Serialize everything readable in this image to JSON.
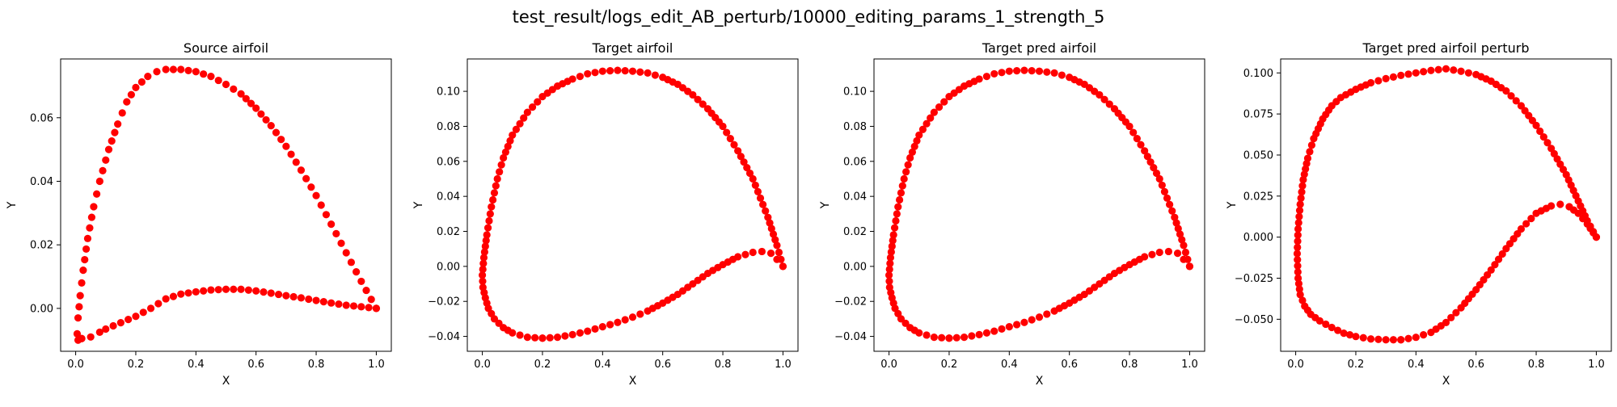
{
  "figure": {
    "suptitle": "test_result/logs_edit_AB_perturb/10000_editing_params_1_strength_5"
  },
  "style": {
    "marker_color": "#ff0000",
    "axes_color": "#000000",
    "background": "#ffffff"
  },
  "chart_data": [
    {
      "type": "scatter",
      "title": "Source airfoil",
      "xlabel": "X",
      "ylabel": "Y",
      "xlim": [
        -0.05,
        1.05
      ],
      "ylim": [
        -0.0135,
        0.0785
      ],
      "xticks": [
        0.0,
        0.2,
        0.4,
        0.6,
        0.8,
        1.0
      ],
      "xtick_labels": [
        "0.0",
        "0.2",
        "0.4",
        "0.6",
        "0.8",
        "1.0"
      ],
      "yticks": [
        0.0,
        0.02,
        0.04,
        0.06
      ],
      "ytick_labels": [
        "0.00",
        "0.02",
        "0.04",
        "0.06"
      ],
      "grid": false,
      "upper_surface": [
        [
          1.0,
          0.0
        ],
        [
          0.95,
          0.0085
        ],
        [
          0.9,
          0.0175
        ],
        [
          0.85,
          0.0265
        ],
        [
          0.8,
          0.0355
        ],
        [
          0.75,
          0.0435
        ],
        [
          0.7,
          0.051
        ],
        [
          0.65,
          0.0575
        ],
        [
          0.6,
          0.063
        ],
        [
          0.55,
          0.0675
        ],
        [
          0.5,
          0.0705
        ],
        [
          0.45,
          0.073
        ],
        [
          0.4,
          0.0745
        ],
        [
          0.35,
          0.0752
        ],
        [
          0.3,
          0.0752
        ],
        [
          0.27,
          0.0745
        ],
        [
          0.24,
          0.073
        ],
        [
          0.2,
          0.0695
        ],
        [
          0.17,
          0.065
        ],
        [
          0.14,
          0.058
        ],
        [
          0.11,
          0.05
        ],
        [
          0.08,
          0.04
        ],
        [
          0.06,
          0.032
        ],
        [
          0.04,
          0.022
        ],
        [
          0.025,
          0.012
        ],
        [
          0.015,
          0.004
        ],
        [
          0.008,
          -0.003
        ],
        [
          0.005,
          -0.008
        ],
        [
          0.008,
          -0.01
        ],
        [
          0.02,
          -0.0095
        ]
      ],
      "lower_surface": [
        [
          0.02,
          -0.0095
        ],
        [
          0.05,
          -0.009
        ],
        [
          0.08,
          -0.0075
        ],
        [
          0.1,
          -0.0065
        ],
        [
          0.15,
          -0.0045
        ],
        [
          0.2,
          -0.0025
        ],
        [
          0.25,
          0.0
        ],
        [
          0.3,
          0.003
        ],
        [
          0.35,
          0.0045
        ],
        [
          0.4,
          0.0052
        ],
        [
          0.45,
          0.0058
        ],
        [
          0.5,
          0.006
        ],
        [
          0.55,
          0.006
        ],
        [
          0.6,
          0.0055
        ],
        [
          0.65,
          0.0048
        ],
        [
          0.7,
          0.004
        ],
        [
          0.75,
          0.0033
        ],
        [
          0.8,
          0.0025
        ],
        [
          0.85,
          0.0017
        ],
        [
          0.9,
          0.001
        ],
        [
          0.95,
          0.0005
        ],
        [
          1.0,
          0.0
        ]
      ]
    },
    {
      "type": "scatter",
      "title": "Target airfoil",
      "xlabel": "X",
      "ylabel": "Y",
      "xlim": [
        -0.05,
        1.05
      ],
      "ylim": [
        -0.0485,
        0.1185
      ],
      "xticks": [
        0.0,
        0.2,
        0.4,
        0.6,
        0.8,
        1.0
      ],
      "xtick_labels": [
        "0.0",
        "0.2",
        "0.4",
        "0.6",
        "0.8",
        "1.0"
      ],
      "yticks": [
        -0.04,
        -0.02,
        0.0,
        0.02,
        0.04,
        0.06,
        0.08,
        0.1
      ],
      "ytick_labels": [
        "−0.04",
        "−0.02",
        "0.00",
        "0.02",
        "0.04",
        "0.06",
        "0.08",
        "0.10"
      ],
      "grid": false,
      "upper_surface": [
        [
          1.0,
          0.0
        ],
        [
          0.98,
          0.012
        ],
        [
          0.95,
          0.028
        ],
        [
          0.9,
          0.05
        ],
        [
          0.85,
          0.066
        ],
        [
          0.8,
          0.08
        ],
        [
          0.75,
          0.09
        ],
        [
          0.7,
          0.098
        ],
        [
          0.65,
          0.104
        ],
        [
          0.6,
          0.108
        ],
        [
          0.55,
          0.1105
        ],
        [
          0.5,
          0.1115
        ],
        [
          0.45,
          0.112
        ],
        [
          0.4,
          0.1115
        ],
        [
          0.35,
          0.11
        ],
        [
          0.3,
          0.107
        ],
        [
          0.25,
          0.103
        ],
        [
          0.2,
          0.097
        ],
        [
          0.15,
          0.088
        ],
        [
          0.1,
          0.075
        ],
        [
          0.07,
          0.062
        ],
        [
          0.05,
          0.05
        ],
        [
          0.03,
          0.034
        ],
        [
          0.015,
          0.018
        ],
        [
          0.005,
          0.005
        ],
        [
          0.0,
          -0.005
        ],
        [
          0.002,
          -0.012
        ],
        [
          0.01,
          -0.018
        ],
        [
          0.02,
          -0.024
        ],
        [
          0.04,
          -0.03
        ],
        [
          0.07,
          -0.035
        ],
        [
          0.1,
          -0.038
        ],
        [
          0.15,
          -0.0405
        ],
        [
          0.2,
          -0.041
        ]
      ],
      "lower_surface": [
        [
          0.2,
          -0.041
        ],
        [
          0.25,
          -0.0405
        ],
        [
          0.3,
          -0.039
        ],
        [
          0.35,
          -0.037
        ],
        [
          0.4,
          -0.0345
        ],
        [
          0.45,
          -0.032
        ],
        [
          0.5,
          -0.029
        ],
        [
          0.55,
          -0.0255
        ],
        [
          0.6,
          -0.021
        ],
        [
          0.65,
          -0.016
        ],
        [
          0.7,
          -0.01
        ],
        [
          0.75,
          -0.004
        ],
        [
          0.8,
          0.001
        ],
        [
          0.85,
          0.0055
        ],
        [
          0.9,
          0.008
        ],
        [
          0.93,
          0.0085
        ],
        [
          0.96,
          0.0075
        ],
        [
          0.98,
          0.004
        ],
        [
          1.0,
          0.0
        ]
      ]
    },
    {
      "type": "scatter",
      "title": "Target pred airfoil",
      "xlabel": "X",
      "ylabel": "Y",
      "xlim": [
        -0.05,
        1.05
      ],
      "ylim": [
        -0.0485,
        0.1185
      ],
      "xticks": [
        0.0,
        0.2,
        0.4,
        0.6,
        0.8,
        1.0
      ],
      "xtick_labels": [
        "0.0",
        "0.2",
        "0.4",
        "0.6",
        "0.8",
        "1.0"
      ],
      "yticks": [
        -0.04,
        -0.02,
        0.0,
        0.02,
        0.04,
        0.06,
        0.08,
        0.1
      ],
      "ytick_labels": [
        "−0.04",
        "−0.02",
        "0.00",
        "0.02",
        "0.04",
        "0.06",
        "0.08",
        "0.10"
      ],
      "grid": false,
      "upper_surface": [
        [
          1.0,
          0.0
        ],
        [
          0.98,
          0.012
        ],
        [
          0.95,
          0.028
        ],
        [
          0.9,
          0.05
        ],
        [
          0.85,
          0.066
        ],
        [
          0.8,
          0.08
        ],
        [
          0.75,
          0.09
        ],
        [
          0.7,
          0.098
        ],
        [
          0.65,
          0.104
        ],
        [
          0.6,
          0.108
        ],
        [
          0.55,
          0.1105
        ],
        [
          0.5,
          0.1115
        ],
        [
          0.45,
          0.112
        ],
        [
          0.4,
          0.1115
        ],
        [
          0.35,
          0.11
        ],
        [
          0.3,
          0.107
        ],
        [
          0.25,
          0.103
        ],
        [
          0.2,
          0.097
        ],
        [
          0.15,
          0.088
        ],
        [
          0.1,
          0.075
        ],
        [
          0.07,
          0.062
        ],
        [
          0.05,
          0.05
        ],
        [
          0.03,
          0.034
        ],
        [
          0.015,
          0.018
        ],
        [
          0.005,
          0.005
        ],
        [
          0.0,
          -0.005
        ],
        [
          0.002,
          -0.012
        ],
        [
          0.01,
          -0.018
        ],
        [
          0.02,
          -0.024
        ],
        [
          0.04,
          -0.03
        ],
        [
          0.07,
          -0.035
        ],
        [
          0.1,
          -0.038
        ],
        [
          0.15,
          -0.0405
        ],
        [
          0.2,
          -0.041
        ]
      ],
      "lower_surface": [
        [
          0.2,
          -0.041
        ],
        [
          0.25,
          -0.0405
        ],
        [
          0.3,
          -0.039
        ],
        [
          0.35,
          -0.037
        ],
        [
          0.4,
          -0.0345
        ],
        [
          0.45,
          -0.032
        ],
        [
          0.5,
          -0.029
        ],
        [
          0.55,
          -0.0255
        ],
        [
          0.6,
          -0.021
        ],
        [
          0.65,
          -0.016
        ],
        [
          0.7,
          -0.01
        ],
        [
          0.75,
          -0.004
        ],
        [
          0.8,
          0.001
        ],
        [
          0.85,
          0.0055
        ],
        [
          0.9,
          0.008
        ],
        [
          0.93,
          0.0085
        ],
        [
          0.96,
          0.0075
        ],
        [
          0.98,
          0.004
        ],
        [
          1.0,
          0.0
        ]
      ]
    },
    {
      "type": "scatter",
      "title": "Target pred airfoil perturb",
      "xlabel": "X",
      "ylabel": "Y",
      "xlim": [
        -0.05,
        1.05
      ],
      "ylim": [
        -0.0695,
        0.1085
      ],
      "xticks": [
        0.0,
        0.2,
        0.4,
        0.6,
        0.8,
        1.0
      ],
      "xtick_labels": [
        "0.0",
        "0.2",
        "0.4",
        "0.6",
        "0.8",
        "1.0"
      ],
      "yticks": [
        -0.05,
        -0.025,
        0.0,
        0.025,
        0.05,
        0.075,
        0.1
      ],
      "ytick_labels": [
        "−0.050",
        "−0.025",
        "0.000",
        "0.025",
        "0.050",
        "0.075",
        "0.100"
      ],
      "grid": false,
      "upper_surface": [
        [
          1.0,
          0.0
        ],
        [
          0.97,
          0.01
        ],
        [
          0.94,
          0.022
        ],
        [
          0.9,
          0.038
        ],
        [
          0.85,
          0.054
        ],
        [
          0.8,
          0.068
        ],
        [
          0.75,
          0.08
        ],
        [
          0.7,
          0.089
        ],
        [
          0.65,
          0.095
        ],
        [
          0.6,
          0.099
        ],
        [
          0.55,
          0.101
        ],
        [
          0.5,
          0.1025
        ],
        [
          0.45,
          0.1015
        ],
        [
          0.4,
          0.1
        ],
        [
          0.35,
          0.0985
        ],
        [
          0.3,
          0.0965
        ],
        [
          0.25,
          0.094
        ],
        [
          0.2,
          0.09
        ],
        [
          0.15,
          0.085
        ],
        [
          0.12,
          0.08
        ],
        [
          0.09,
          0.072
        ],
        [
          0.06,
          0.06
        ],
        [
          0.04,
          0.048
        ],
        [
          0.025,
          0.035
        ],
        [
          0.015,
          0.02
        ],
        [
          0.008,
          0.005
        ],
        [
          0.005,
          -0.01
        ],
        [
          0.008,
          -0.025
        ],
        [
          0.015,
          -0.035
        ],
        [
          0.03,
          -0.042
        ],
        [
          0.05,
          -0.047
        ],
        [
          0.08,
          -0.051
        ],
        [
          0.12,
          -0.055
        ],
        [
          0.16,
          -0.0585
        ],
        [
          0.2,
          -0.0605
        ],
        [
          0.25,
          -0.062
        ],
        [
          0.3,
          -0.0625
        ],
        [
          0.35,
          -0.0625
        ]
      ],
      "lower_surface": [
        [
          0.35,
          -0.0625
        ],
        [
          0.4,
          -0.061
        ],
        [
          0.45,
          -0.058
        ],
        [
          0.5,
          -0.052
        ],
        [
          0.55,
          -0.043
        ],
        [
          0.6,
          -0.032
        ],
        [
          0.65,
          -0.02
        ],
        [
          0.7,
          -0.007
        ],
        [
          0.75,
          0.005
        ],
        [
          0.8,
          0.0145
        ],
        [
          0.85,
          0.019
        ],
        [
          0.88,
          0.02
        ],
        [
          0.91,
          0.0185
        ],
        [
          0.94,
          0.0145
        ],
        [
          0.97,
          0.008
        ],
        [
          1.0,
          0.0
        ]
      ]
    }
  ]
}
